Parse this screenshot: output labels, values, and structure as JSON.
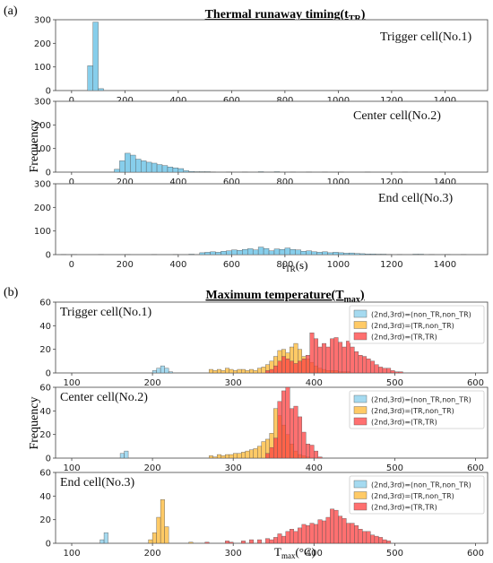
{
  "figure": {
    "panel_a_label": "(a)",
    "panel_b_label": "(b)",
    "ylabel": "Frequency",
    "title_a_main": "Thermal runaway timing(t",
    "title_a_sub": "TR",
    "title_a_tail": ")",
    "title_b_main": "Maximum temperature(T",
    "title_b_sub": "max",
    "title_b_tail": ")",
    "xlabel_a_main": "t",
    "xlabel_a_sub": "TR",
    "xlabel_a_tail": "(s)",
    "xlabel_b_main": "T",
    "xlabel_b_sub": "max",
    "xlabel_b_tail": "(°C)"
  },
  "colors": {
    "blue": "#87CEEB",
    "orange": "#FFB833",
    "red": "#FF4040",
    "edge": "#555555"
  },
  "chart_data": [
    {
      "type": "bar",
      "panel": "a",
      "label": "Trigger cell(No.1)",
      "bin_width": 20,
      "xlim": [
        -60,
        1560
      ],
      "ylim": [
        0,
        300
      ],
      "xticks": [
        0,
        200,
        400,
        600,
        800,
        1000,
        1200,
        1400
      ],
      "yticks": [
        0,
        100,
        200,
        300
      ],
      "bins": [
        [
          60,
          105
        ],
        [
          80,
          290
        ],
        [
          100,
          8
        ]
      ]
    },
    {
      "type": "bar",
      "panel": "a",
      "label": "Center cell(No.2)",
      "bin_width": 20,
      "xlim": [
        -60,
        1560
      ],
      "ylim": [
        0,
        300
      ],
      "xticks": [
        0,
        200,
        400,
        600,
        800,
        1000,
        1200,
        1400
      ],
      "yticks": [
        0,
        100,
        200,
        300
      ],
      "bins": [
        [
          160,
          12
        ],
        [
          180,
          48
        ],
        [
          200,
          80
        ],
        [
          220,
          72
        ],
        [
          240,
          55
        ],
        [
          260,
          48
        ],
        [
          280,
          42
        ],
        [
          300,
          38
        ],
        [
          320,
          32
        ],
        [
          340,
          28
        ],
        [
          360,
          22
        ],
        [
          380,
          18
        ],
        [
          400,
          15
        ],
        [
          420,
          6
        ],
        [
          440,
          3
        ],
        [
          460,
          2
        ],
        [
          480,
          2
        ],
        [
          500,
          2
        ],
        [
          520,
          1
        ],
        [
          580,
          1
        ],
        [
          640,
          1
        ],
        [
          700,
          2
        ],
        [
          760,
          2
        ],
        [
          820,
          1
        ],
        [
          880,
          1
        ],
        [
          940,
          1
        ],
        [
          1000,
          1
        ],
        [
          1100,
          1
        ],
        [
          1240,
          1
        ],
        [
          1380,
          1
        ]
      ]
    },
    {
      "type": "bar",
      "panel": "a",
      "label": "End cell(No.3)",
      "bin_width": 20,
      "xlim": [
        -60,
        1560
      ],
      "ylim": [
        0,
        300
      ],
      "xticks": [
        0,
        200,
        400,
        600,
        800,
        1000,
        1200,
        1400
      ],
      "yticks": [
        0,
        100,
        200,
        300
      ],
      "bins": [
        [
          -40,
          1
        ],
        [
          0,
          1
        ],
        [
          100,
          1
        ],
        [
          200,
          1
        ],
        [
          300,
          1
        ],
        [
          380,
          1
        ],
        [
          440,
          2
        ],
        [
          480,
          8
        ],
        [
          500,
          10
        ],
        [
          520,
          12
        ],
        [
          540,
          10
        ],
        [
          560,
          14
        ],
        [
          580,
          16
        ],
        [
          600,
          20
        ],
        [
          620,
          18
        ],
        [
          640,
          22
        ],
        [
          660,
          25
        ],
        [
          680,
          20
        ],
        [
          700,
          32
        ],
        [
          720,
          26
        ],
        [
          740,
          16
        ],
        [
          760,
          24
        ],
        [
          780,
          22
        ],
        [
          800,
          28
        ],
        [
          820,
          22
        ],
        [
          840,
          20
        ],
        [
          860,
          14
        ],
        [
          880,
          16
        ],
        [
          900,
          12
        ],
        [
          920,
          10
        ],
        [
          940,
          12
        ],
        [
          960,
          8
        ],
        [
          980,
          10
        ],
        [
          1000,
          8
        ],
        [
          1020,
          6
        ],
        [
          1040,
          7
        ],
        [
          1060,
          5
        ],
        [
          1080,
          4
        ],
        [
          1100,
          3
        ],
        [
          1120,
          3
        ],
        [
          1140,
          2
        ],
        [
          1160,
          2
        ],
        [
          1180,
          1
        ],
        [
          1220,
          1
        ],
        [
          1280,
          2
        ],
        [
          1300,
          2
        ],
        [
          1340,
          1
        ],
        [
          1400,
          1
        ],
        [
          1460,
          1
        ]
      ]
    },
    {
      "type": "bar",
      "panel": "b",
      "label": "Trigger cell(No.1)",
      "bin_width": 5,
      "xlim": [
        80,
        615
      ],
      "ylim": [
        0,
        60
      ],
      "xticks": [
        100,
        200,
        300,
        400,
        500,
        600
      ],
      "yticks": [
        0,
        20,
        40,
        60
      ],
      "legend": [
        "(2nd,3rd)=(non_TR,non_TR)",
        "(2nd,3rd)=(TR,non_TR)",
        "(2nd,3rd)=(TR,TR)"
      ],
      "series": [
        {
          "name": "(2nd,3rd)=(non_TR,non_TR)",
          "color": "blue",
          "bins": [
            [
              200,
              2
            ],
            [
              205,
              4
            ],
            [
              210,
              6
            ],
            [
              215,
              4
            ],
            [
              220,
              1
            ]
          ]
        },
        {
          "name": "(2nd,3rd)=(TR,non_TR)",
          "color": "orange",
          "bins": [
            [
              270,
              3
            ],
            [
              275,
              2
            ],
            [
              280,
              3
            ],
            [
              285,
              2
            ],
            [
              290,
              4
            ],
            [
              295,
              3
            ],
            [
              300,
              2
            ],
            [
              305,
              3
            ],
            [
              310,
              3
            ],
            [
              315,
              2
            ],
            [
              320,
              3
            ],
            [
              325,
              2
            ],
            [
              330,
              4
            ],
            [
              335,
              5
            ],
            [
              340,
              7
            ],
            [
              345,
              10
            ],
            [
              350,
              14
            ],
            [
              355,
              19
            ],
            [
              360,
              20
            ],
            [
              365,
              17
            ],
            [
              370,
              22
            ],
            [
              375,
              25
            ],
            [
              380,
              20
            ],
            [
              385,
              14
            ],
            [
              390,
              12
            ],
            [
              395,
              9
            ],
            [
              400,
              6
            ],
            [
              405,
              4
            ],
            [
              410,
              3
            ],
            [
              415,
              2
            ],
            [
              420,
              2
            ],
            [
              425,
              2
            ],
            [
              430,
              1
            ],
            [
              435,
              1
            ],
            [
              440,
              1
            ]
          ]
        },
        {
          "name": "(2nd,3rd)=(TR,TR)",
          "color": "red",
          "bins": [
            [
              340,
              2
            ],
            [
              345,
              3
            ],
            [
              350,
              6
            ],
            [
              355,
              10
            ],
            [
              360,
              14
            ],
            [
              365,
              12
            ],
            [
              370,
              10
            ],
            [
              375,
              8
            ],
            [
              380,
              10
            ],
            [
              385,
              12
            ],
            [
              390,
              15
            ],
            [
              395,
              34
            ],
            [
              400,
              29
            ],
            [
              405,
              22
            ],
            [
              410,
              25
            ],
            [
              415,
              22
            ],
            [
              420,
              29
            ],
            [
              425,
              30
            ],
            [
              430,
              26
            ],
            [
              435,
              22
            ],
            [
              440,
              27
            ],
            [
              445,
              22
            ],
            [
              450,
              18
            ],
            [
              455,
              15
            ],
            [
              460,
              14
            ],
            [
              465,
              12
            ],
            [
              470,
              10
            ],
            [
              475,
              7
            ],
            [
              480,
              5
            ],
            [
              485,
              4
            ],
            [
              490,
              4
            ],
            [
              495,
              2
            ],
            [
              500,
              1
            ],
            [
              505,
              1
            ]
          ]
        }
      ]
    },
    {
      "type": "bar",
      "panel": "b",
      "label": "Center cell(No.2)",
      "bin_width": 5,
      "xlim": [
        80,
        615
      ],
      "ylim": [
        0,
        60
      ],
      "xticks": [
        100,
        200,
        300,
        400,
        500,
        600
      ],
      "yticks": [
        0,
        20,
        40,
        60
      ],
      "legend": [
        "(2nd,3rd)=(non_TR,non_TR)",
        "(2nd,3rd)=(TR,non_TR)",
        "(2nd,3rd)=(TR,TR)"
      ],
      "series": [
        {
          "name": "(2nd,3rd)=(non_TR,non_TR)",
          "color": "blue",
          "bins": [
            [
              160,
              4
            ],
            [
              165,
              6
            ]
          ]
        },
        {
          "name": "(2nd,3rd)=(TR,non_TR)",
          "color": "orange",
          "bins": [
            [
              270,
              2
            ],
            [
              275,
              1
            ],
            [
              280,
              3
            ],
            [
              285,
              2
            ],
            [
              290,
              3
            ],
            [
              295,
              3
            ],
            [
              300,
              4
            ],
            [
              305,
              4
            ],
            [
              310,
              5
            ],
            [
              315,
              6
            ],
            [
              320,
              7
            ],
            [
              325,
              8
            ],
            [
              330,
              10
            ],
            [
              335,
              14
            ],
            [
              340,
              16
            ],
            [
              345,
              21
            ],
            [
              350,
              42
            ],
            [
              355,
              36
            ],
            [
              360,
              28
            ],
            [
              365,
              20
            ],
            [
              370,
              12
            ],
            [
              375,
              6
            ],
            [
              380,
              3
            ],
            [
              385,
              2
            ],
            [
              390,
              1
            ]
          ]
        },
        {
          "name": "(2nd,3rd)=(TR,TR)",
          "color": "red",
          "bins": [
            [
              340,
              4
            ],
            [
              345,
              9
            ],
            [
              350,
              17
            ],
            [
              355,
              48
            ],
            [
              360,
              57
            ],
            [
              365,
              60
            ],
            [
              370,
              42
            ],
            [
              375,
              44
            ],
            [
              380,
              35
            ],
            [
              385,
              22
            ],
            [
              390,
              12
            ],
            [
              395,
              11
            ],
            [
              400,
              6
            ],
            [
              405,
              1
            ]
          ]
        }
      ]
    },
    {
      "type": "bar",
      "panel": "b",
      "label": "End cell(No.3)",
      "bin_width": 5,
      "xlim": [
        80,
        615
      ],
      "ylim": [
        0,
        60
      ],
      "xticks": [
        100,
        200,
        300,
        400,
        500,
        600
      ],
      "yticks": [
        0,
        20,
        40,
        60
      ],
      "legend": [
        "(2nd,3rd)=(non_TR,non_TR)",
        "(2nd,3rd)=(TR,non_TR)",
        "(2nd,3rd)=(TR,TR)"
      ],
      "series": [
        {
          "name": "(2nd,3rd)=(non_TR,non_TR)",
          "color": "blue",
          "bins": [
            [
              135,
              3
            ],
            [
              140,
              9
            ]
          ]
        },
        {
          "name": "(2nd,3rd)=(TR,non_TR)",
          "color": "orange",
          "bins": [
            [
              195,
              3
            ],
            [
              200,
              9
            ],
            [
              205,
              22
            ],
            [
              210,
              37
            ],
            [
              215,
              14
            ],
            [
              245,
              1
            ]
          ]
        },
        {
          "name": "(2nd,3rd)=(TR,TR)",
          "color": "red",
          "bins": [
            [
              265,
              1
            ],
            [
              290,
              2
            ],
            [
              295,
              1
            ],
            [
              310,
              2
            ],
            [
              320,
              3
            ],
            [
              330,
              3
            ],
            [
              340,
              4
            ],
            [
              345,
              3
            ],
            [
              350,
              5
            ],
            [
              355,
              8
            ],
            [
              360,
              6
            ],
            [
              365,
              10
            ],
            [
              370,
              12
            ],
            [
              375,
              10
            ],
            [
              380,
              13
            ],
            [
              385,
              16
            ],
            [
              390,
              15
            ],
            [
              395,
              17
            ],
            [
              400,
              16
            ],
            [
              405,
              20
            ],
            [
              410,
              19
            ],
            [
              415,
              22
            ],
            [
              420,
              29
            ],
            [
              425,
              28
            ],
            [
              430,
              23
            ],
            [
              435,
              21
            ],
            [
              440,
              17
            ],
            [
              445,
              17
            ],
            [
              450,
              15
            ],
            [
              455,
              12
            ],
            [
              460,
              10
            ],
            [
              465,
              10
            ],
            [
              470,
              7
            ],
            [
              475,
              6
            ],
            [
              480,
              5
            ],
            [
              485,
              3
            ],
            [
              490,
              2
            ]
          ]
        }
      ]
    }
  ]
}
